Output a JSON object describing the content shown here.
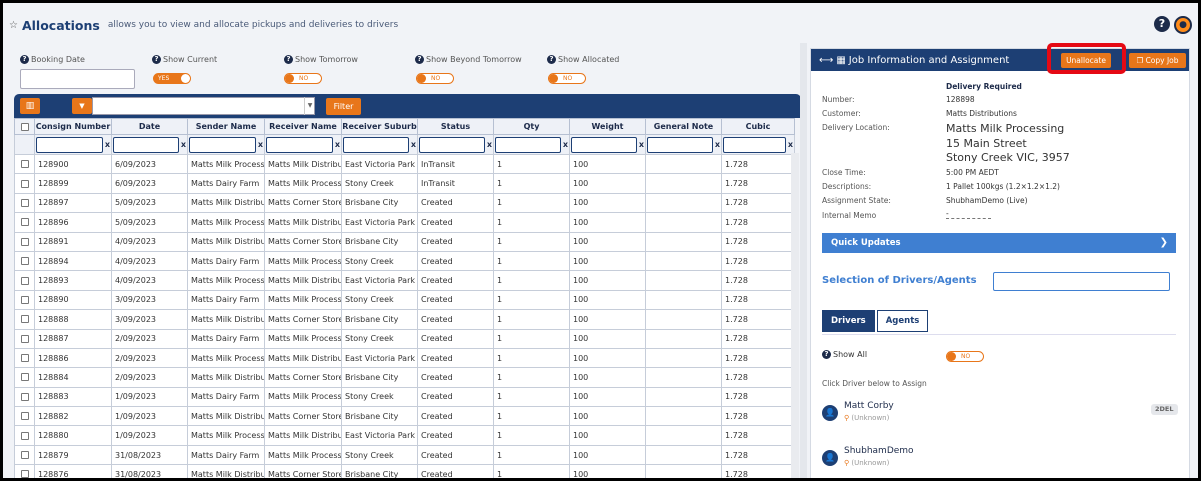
{
  "header": {
    "title": "Allocations",
    "subtitle": "allows you to view and allocate pickups and deliveries to drivers"
  },
  "filters": {
    "booking_date": "Booking Date",
    "show_current": "Show Current",
    "show_current_state": "YES",
    "show_tomorrow": "Show Tomorrow",
    "show_tomorrow_state": "NO",
    "show_beyond": "Show Beyond Tomorrow",
    "show_beyond_state": "NO",
    "show_allocated": "Show Allocated",
    "show_allocated_state": "NO"
  },
  "toolbar": {
    "filter_label": "Filter"
  },
  "table": {
    "columns": [
      "Consign Number",
      "Date",
      "Sender Name",
      "Receiver Name",
      "Receiver Suburb",
      "Status",
      "Qty",
      "Weight",
      "General Note",
      "Cubic"
    ],
    "clear_label": "x",
    "rows": [
      [
        "128900",
        "6/09/2023",
        "Matts Milk Process",
        "Matts Milk Distribu",
        "East Victoria Park",
        "InTransit",
        "1",
        "100",
        "",
        "1.728"
      ],
      [
        "128899",
        "6/09/2023",
        "Matts Dairy Farm",
        "Matts Milk Process",
        "Stony Creek",
        "InTransit",
        "1",
        "100",
        "",
        "1.728"
      ],
      [
        "128897",
        "5/09/2023",
        "Matts Milk Distribu",
        "Matts Corner Store",
        "Brisbane City",
        "Created",
        "1",
        "100",
        "",
        "1.728"
      ],
      [
        "128896",
        "5/09/2023",
        "Matts Milk Process",
        "Matts Milk Distribu",
        "East Victoria Park",
        "Created",
        "1",
        "100",
        "",
        "1.728"
      ],
      [
        "128891",
        "4/09/2023",
        "Matts Milk Distribu",
        "Matts Corner Store",
        "Brisbane City",
        "Created",
        "1",
        "100",
        "",
        "1.728"
      ],
      [
        "128894",
        "4/09/2023",
        "Matts Dairy Farm",
        "Matts Milk Process",
        "Stony Creek",
        "Created",
        "1",
        "100",
        "",
        "1.728"
      ],
      [
        "128893",
        "4/09/2023",
        "Matts Milk Process",
        "Matts Milk Distribu",
        "East Victoria Park",
        "Created",
        "1",
        "100",
        "",
        "1.728"
      ],
      [
        "128890",
        "3/09/2023",
        "Matts Dairy Farm",
        "Matts Milk Process",
        "Stony Creek",
        "Created",
        "1",
        "100",
        "",
        "1.728"
      ],
      [
        "128888",
        "3/09/2023",
        "Matts Milk Distribu",
        "Matts Corner Store",
        "Brisbane City",
        "Created",
        "1",
        "100",
        "",
        "1.728"
      ],
      [
        "128887",
        "2/09/2023",
        "Matts Dairy Farm",
        "Matts Milk Process",
        "Stony Creek",
        "Created",
        "1",
        "100",
        "",
        "1.728"
      ],
      [
        "128886",
        "2/09/2023",
        "Matts Milk Process",
        "Matts Milk Distribu",
        "East Victoria Park",
        "Created",
        "1",
        "100",
        "",
        "1.728"
      ],
      [
        "128884",
        "2/09/2023",
        "Matts Milk Distribu",
        "Matts Corner Store",
        "Brisbane City",
        "Created",
        "1",
        "100",
        "",
        "1.728"
      ],
      [
        "128883",
        "1/09/2023",
        "Matts Dairy Farm",
        "Matts Milk Process",
        "Stony Creek",
        "Created",
        "1",
        "100",
        "",
        "1.728"
      ],
      [
        "128882",
        "1/09/2023",
        "Matts Milk Distribu",
        "Matts Corner Store",
        "Brisbane City",
        "Created",
        "1",
        "100",
        "",
        "1.728"
      ],
      [
        "128880",
        "1/09/2023",
        "Matts Milk Process",
        "Matts Milk Distribu",
        "East Victoria Park",
        "Created",
        "1",
        "100",
        "",
        "1.728"
      ],
      [
        "128879",
        "31/08/2023",
        "Matts Dairy Farm",
        "Matts Milk Process",
        "Stony Creek",
        "Created",
        "1",
        "100",
        "",
        "1.728"
      ],
      [
        "128876",
        "31/08/2023",
        "Matts Milk Distribu",
        "Matts Corner Store",
        "Brisbane City",
        "Created",
        "1",
        "100",
        "",
        "1.728"
      ]
    ]
  },
  "job": {
    "title": "Job Information and Assignment",
    "unallocate": "Unallocate",
    "copy_job": "Copy Job",
    "delivery_required": "Delivery Required",
    "number_label": "Number:",
    "number": "128898",
    "customer_label": "Customer:",
    "customer": "Matts Distributions",
    "location_label": "Delivery Location:",
    "location_line1": "Matts Milk Processing",
    "location_line2": "15 Main Street",
    "location_line3": "Stony Creek VIC, 3957",
    "close_label": "Close Time:",
    "close": "5:00 PM AEDT",
    "desc_label": "Descriptions:",
    "desc": "1 Pallet 100kgs (1.2×1.2×1.2)",
    "state_label": "Assignment State:",
    "state": "ShubhamDemo (Live)",
    "memo_label": "Internal Memo",
    "memo": "-",
    "quick_updates": "Quick Updates",
    "selection_title": "Selection of Drivers/Agents",
    "tab_drivers": "Drivers",
    "tab_agents": "Agents",
    "show_all": "Show All",
    "show_all_state": "NO",
    "click_driver": "Click Driver below to Assign",
    "drivers": [
      {
        "name": "Matt Corby",
        "location": "(Unknown)",
        "badge": "2DEL"
      },
      {
        "name": "ShubhamDemo",
        "location": "(Unknown)"
      }
    ]
  }
}
